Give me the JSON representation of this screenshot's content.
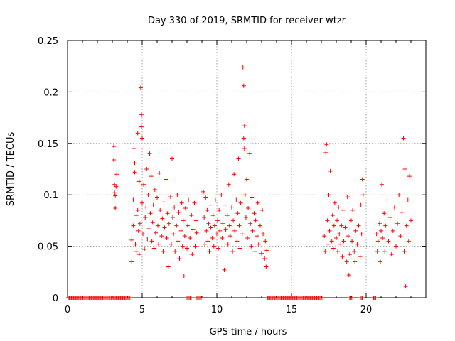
{
  "chart_data": {
    "type": "scatter",
    "title": "Day 330 of 2019, SRMTID for receiver wtzr",
    "xlabel": "GPS time / hours",
    "ylabel": "SRMTID / TECUs",
    "xlim": [
      0,
      24
    ],
    "ylim": [
      0,
      0.25
    ],
    "xticks": [
      0,
      5,
      10,
      15,
      20
    ],
    "xtick_labels": [
      "0",
      "5",
      "10",
      "15",
      "20"
    ],
    "yticks": [
      0,
      0.05,
      0.1,
      0.15,
      0.2,
      0.25
    ],
    "ytick_labels": [
      "0",
      "0.05",
      "0.1",
      "0.15",
      "0.2",
      "0.25"
    ],
    "grid": true,
    "marker": "+",
    "color": "#ff0000",
    "series": [
      {
        "name": "SRMTID",
        "points": [
          [
            3.1,
            0.147
          ],
          [
            3.1,
            0.134
          ],
          [
            3.15,
            0.11
          ],
          [
            3.15,
            0.102
          ],
          [
            3.2,
            0.099
          ],
          [
            3.2,
            0.087
          ],
          [
            3.25,
            0.108
          ],
          [
            3.3,
            0.12
          ],
          [
            4.3,
            0.056
          ],
          [
            4.3,
            0.035
          ],
          [
            4.4,
            0.095
          ],
          [
            4.4,
            0.07
          ],
          [
            4.45,
            0.145
          ],
          [
            4.5,
            0.131
          ],
          [
            4.5,
            0.122
          ],
          [
            4.55,
            0.052
          ],
          [
            4.6,
            0.045
          ],
          [
            4.6,
            0.08
          ],
          [
            4.7,
            0.16
          ],
          [
            4.7,
            0.085
          ],
          [
            4.75,
            0.065
          ],
          [
            4.8,
            0.042
          ],
          [
            4.8,
            0.113
          ],
          [
            4.85,
            0.072
          ],
          [
            4.9,
            0.204
          ],
          [
            4.95,
            0.178
          ],
          [
            4.95,
            0.166
          ],
          [
            5.0,
            0.155
          ],
          [
            5.0,
            0.092
          ],
          [
            5.05,
            0.062
          ],
          [
            5.1,
            0.11
          ],
          [
            5.15,
            0.047
          ],
          [
            5.2,
            0.078
          ],
          [
            5.25,
            0.088
          ],
          [
            5.3,
            0.125
          ],
          [
            5.35,
            0.057
          ],
          [
            5.4,
            0.1
          ],
          [
            5.45,
            0.067
          ],
          [
            5.5,
            0.14
          ],
          [
            5.55,
            0.082
          ],
          [
            5.6,
            0.118
          ],
          [
            5.65,
            0.055
          ],
          [
            5.7,
            0.073
          ],
          [
            5.75,
            0.09
          ],
          [
            5.8,
            0.048
          ],
          [
            5.85,
            0.105
          ],
          [
            5.9,
            0.063
          ],
          [
            6.0,
            0.097
          ],
          [
            6.05,
            0.07
          ],
          [
            6.1,
            0.052
          ],
          [
            6.15,
            0.121
          ],
          [
            6.2,
            0.085
          ],
          [
            6.3,
            0.06
          ],
          [
            6.35,
            0.077
          ],
          [
            6.4,
            0.045
          ],
          [
            6.45,
            0.093
          ],
          [
            6.5,
            0.068
          ],
          [
            6.6,
            0.115
          ],
          [
            6.65,
            0.058
          ],
          [
            6.7,
            0.082
          ],
          [
            6.75,
            0.03
          ],
          [
            6.8,
            0.072
          ],
          [
            6.9,
            0.098
          ],
          [
            6.95,
            0.052
          ],
          [
            7.0,
            0.135
          ],
          [
            7.05,
            0.078
          ],
          [
            7.1,
            0.062
          ],
          [
            7.15,
            0.088
          ],
          [
            7.2,
            0.045
          ],
          [
            7.3,
            0.07
          ],
          [
            7.35,
            0.1
          ],
          [
            7.4,
            0.055
          ],
          [
            7.45,
            0.083
          ],
          [
            7.5,
            0.038
          ],
          [
            7.6,
            0.065
          ],
          [
            7.65,
            0.092
          ],
          [
            7.7,
            0.05
          ],
          [
            7.75,
            0.075
          ],
          [
            7.8,
            0.021
          ],
          [
            7.85,
            0.06
          ],
          [
            7.9,
            0.087
          ],
          [
            8.0,
            0.048
          ],
          [
            8.05,
            0.07
          ],
          [
            8.1,
            0.095
          ],
          [
            8.2,
            0.058
          ],
          [
            8.3,
            0.08
          ],
          [
            8.35,
            0.042
          ],
          [
            8.4,
            0.066
          ],
          [
            8.5,
            0.092
          ],
          [
            8.55,
            0.05
          ],
          [
            8.6,
            0.075
          ],
          [
            8.65,
            0.063
          ],
          [
            9.1,
            0.103
          ],
          [
            9.15,
            0.078
          ],
          [
            9.2,
            0.052
          ],
          [
            9.25,
            0.097
          ],
          [
            9.3,
            0.065
          ],
          [
            9.35,
            0.085
          ],
          [
            9.4,
            0.055
          ],
          [
            9.45,
            0.072
          ],
          [
            9.5,
            0.045
          ],
          [
            9.55,
            0.09
          ],
          [
            9.6,
            0.068
          ],
          [
            9.7,
            0.058
          ],
          [
            9.75,
            0.08
          ],
          [
            9.8,
            0.05
          ],
          [
            9.85,
            0.07
          ],
          [
            9.9,
            0.095
          ],
          [
            10.0,
            0.062
          ],
          [
            10.05,
            0.075
          ],
          [
            10.1,
            0.048
          ],
          [
            10.15,
            0.085
          ],
          [
            10.2,
            0.065
          ],
          [
            10.3,
            0.1
          ],
          [
            10.35,
            0.058
          ],
          [
            10.4,
            0.072
          ],
          [
            10.5,
            0.027
          ],
          [
            10.55,
            0.09
          ],
          [
            10.6,
            0.066
          ],
          [
            10.7,
            0.08
          ],
          [
            10.75,
            0.052
          ],
          [
            10.8,
            0.11
          ],
          [
            10.85,
            0.07
          ],
          [
            10.9,
            0.06
          ],
          [
            11.0,
            0.088
          ],
          [
            11.05,
            0.045
          ],
          [
            11.1,
            0.075
          ],
          [
            11.15,
            0.12
          ],
          [
            11.2,
            0.065
          ],
          [
            11.3,
            0.095
          ],
          [
            11.35,
            0.055
          ],
          [
            11.4,
            0.082
          ],
          [
            11.45,
            0.135
          ],
          [
            11.5,
            0.07
          ],
          [
            11.55,
            0.048
          ],
          [
            11.6,
            0.092
          ],
          [
            11.7,
            0.062
          ],
          [
            11.75,
            0.224
          ],
          [
            11.8,
            0.206
          ],
          [
            11.8,
            0.155
          ],
          [
            11.85,
            0.167
          ],
          [
            11.85,
            0.145
          ],
          [
            11.9,
            0.1
          ],
          [
            11.95,
            0.078
          ],
          [
            12.0,
            0.115
          ],
          [
            12.05,
            0.058
          ],
          [
            12.1,
            0.087
          ],
          [
            12.2,
            0.14
          ],
          [
            12.25,
            0.072
          ],
          [
            12.3,
            0.05
          ],
          [
            12.35,
            0.097
          ],
          [
            12.4,
            0.065
          ],
          [
            12.5,
            0.082
          ],
          [
            12.55,
            0.045
          ],
          [
            12.6,
            0.075
          ],
          [
            12.7,
            0.06
          ],
          [
            12.75,
            0.092
          ],
          [
            12.8,
            0.052
          ],
          [
            12.9,
            0.07
          ],
          [
            13.0,
            0.043
          ],
          [
            13.05,
            0.085
          ],
          [
            13.1,
            0.062
          ],
          [
            13.2,
            0.038
          ],
          [
            13.25,
            0.055
          ],
          [
            13.3,
            0.03
          ],
          [
            13.35,
            0.046
          ],
          [
            17.2,
            0.06
          ],
          [
            17.25,
            0.045
          ],
          [
            17.3,
            0.141
          ],
          [
            17.35,
            0.149
          ],
          [
            17.4,
            0.075
          ],
          [
            17.45,
            0.052
          ],
          [
            17.5,
            0.1
          ],
          [
            17.55,
            0.065
          ],
          [
            17.6,
            0.123
          ],
          [
            17.7,
            0.055
          ],
          [
            17.75,
            0.08
          ],
          [
            17.8,
            0.048
          ],
          [
            17.85,
            0.07
          ],
          [
            17.9,
            0.092
          ],
          [
            18.0,
            0.058
          ],
          [
            18.05,
            0.075
          ],
          [
            18.1,
            0.045
          ],
          [
            18.15,
            0.088
          ],
          [
            18.2,
            0.062
          ],
          [
            18.3,
            0.052
          ],
          [
            18.35,
            0.07
          ],
          [
            18.4,
            0.04
          ],
          [
            18.45,
            0.085
          ],
          [
            18.5,
            0.055
          ],
          [
            18.6,
            0.068
          ],
          [
            18.7,
            0.035
          ],
          [
            18.75,
            0.098
          ],
          [
            18.8,
            0.06
          ],
          [
            18.85,
            0.022
          ],
          [
            18.9,
            0.042
          ],
          [
            19.0,
            0.075
          ],
          [
            19.05,
            0.055
          ],
          [
            19.1,
            0.085
          ],
          [
            19.2,
            0.045
          ],
          [
            19.25,
            0.035
          ],
          [
            19.3,
            0.065
          ],
          [
            19.4,
            0.052
          ],
          [
            19.5,
            0.07
          ],
          [
            19.6,
            0.04
          ],
          [
            19.65,
            0.09
          ],
          [
            19.7,
            0.062
          ],
          [
            19.75,
            0.115
          ],
          [
            19.8,
            0.1
          ],
          [
            20.7,
            0.062
          ],
          [
            20.75,
            0.045
          ],
          [
            20.8,
            0.055
          ],
          [
            20.9,
            0.072
          ],
          [
            20.95,
            0.035
          ],
          [
            21.0,
            0.065
          ],
          [
            21.05,
            0.11
          ],
          [
            21.1,
            0.058
          ],
          [
            21.2,
            0.082
          ],
          [
            21.25,
            0.045
          ],
          [
            21.3,
            0.07
          ],
          [
            21.4,
            0.095
          ],
          [
            21.5,
            0.055
          ],
          [
            21.6,
            0.078
          ],
          [
            21.7,
            0.042
          ],
          [
            21.8,
            0.065
          ],
          [
            21.9,
            0.088
          ],
          [
            22.0,
            0.05
          ],
          [
            22.1,
            0.072
          ],
          [
            22.2,
            0.1
          ],
          [
            22.3,
            0.06
          ],
          [
            22.4,
            0.083
          ],
          [
            22.5,
            0.155
          ],
          [
            22.55,
            0.045
          ],
          [
            22.6,
            0.125
          ],
          [
            22.65,
            0.011
          ],
          [
            22.7,
            0.07
          ],
          [
            22.8,
            0.095
          ],
          [
            22.85,
            0.055
          ],
          [
            22.9,
            0.118
          ],
          [
            23.0,
            0.075
          ]
        ]
      }
    ],
    "zero_runs": [
      [
        0.05,
        4.2
      ],
      [
        8.0,
        8.3
      ],
      [
        8.6,
        9.0
      ],
      [
        13.4,
        17.1
      ],
      [
        18.9,
        19.1
      ],
      [
        19.6,
        19.8
      ],
      [
        20.5,
        20.7
      ]
    ]
  }
}
